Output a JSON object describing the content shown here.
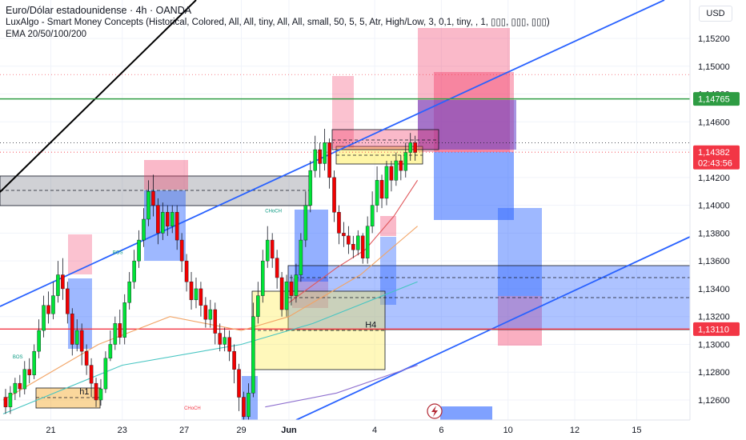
{
  "header": {
    "symbol_line": "Euro/Dólar estadounidense · 4h · OANDA",
    "indicator_line": "LuxAlgo - Smart Money Concepts (Historical, Colored, All, All, tiny, All, All, small, 50, 5, 5, Atr, High/Low, 3, 0,1, tiny, , 1, ▯▯▯, ▯▯▯, ▯▯▯)",
    "ema_line": "EMA 20/50/100/200",
    "currency": "USD"
  },
  "chart_data": {
    "type": "candlestick",
    "title": "Euro/Dólar estadounidense · 4h · OANDA",
    "y_axis": {
      "min": 1.1245,
      "max": 1.1535,
      "ticks": [
        "1,15200",
        "1,15000",
        "1,14800",
        "1,14600",
        "1,14400",
        "1,14200",
        "1,14000",
        "1,13800",
        "1,13600",
        "1,13400",
        "1,13200",
        "1,13000",
        "1,12800",
        "1,12600"
      ],
      "tick_values": [
        1.152,
        1.15,
        1.148,
        1.146,
        1.144,
        1.142,
        1.14,
        1.138,
        1.136,
        1.134,
        1.132,
        1.13,
        1.128,
        1.126
      ]
    },
    "x_axis": {
      "labels": [
        "21",
        "23",
        "27",
        "29",
        "Jun",
        "4",
        "6",
        "10",
        "12",
        "15"
      ],
      "label_bars": [
        10,
        25,
        38,
        50,
        60,
        78,
        92,
        106,
        120,
        133
      ]
    },
    "price_labels": [
      {
        "text": "1,14765",
        "value": 1.14765,
        "color": "#2e9c43"
      },
      {
        "text": "1,14382",
        "value": 1.14382,
        "color": "#f23645",
        "sub": "02:43:56"
      },
      {
        "text": "1,13110",
        "value": 1.1311,
        "color": "#f23645"
      }
    ],
    "candles": [
      [
        1.1262,
        1.1255,
        1.1268,
        1.125
      ],
      [
        1.1255,
        1.1265,
        1.127,
        1.125
      ],
      [
        1.1265,
        1.1272,
        1.1276,
        1.126
      ],
      [
        1.1272,
        1.1268,
        1.1278,
        1.1262
      ],
      [
        1.1268,
        1.1282,
        1.1288,
        1.1264
      ],
      [
        1.1282,
        1.1278,
        1.129,
        1.1272
      ],
      [
        1.1278,
        1.1295,
        1.13,
        1.1275
      ],
      [
        1.1295,
        1.131,
        1.1318,
        1.129
      ],
      [
        1.131,
        1.1328,
        1.1335,
        1.1305
      ],
      [
        1.1328,
        1.1322,
        1.1338,
        1.1315
      ],
      [
        1.1322,
        1.1335,
        1.1345,
        1.1318
      ],
      [
        1.1335,
        1.135,
        1.136,
        1.133
      ],
      [
        1.135,
        1.134,
        1.1362,
        1.1332
      ],
      [
        1.134,
        1.1322,
        1.1345,
        1.1315
      ],
      [
        1.1322,
        1.13,
        1.1326,
        1.1292
      ],
      [
        1.13,
        1.131,
        1.1318,
        1.1295
      ],
      [
        1.131,
        1.1295,
        1.1315,
        1.1285
      ],
      [
        1.1295,
        1.1285,
        1.13,
        1.1278
      ],
      [
        1.1285,
        1.1272,
        1.129,
        1.1262
      ],
      [
        1.1272,
        1.126,
        1.1276,
        1.1255
      ],
      [
        1.126,
        1.1268,
        1.1275,
        1.1256
      ],
      [
        1.1268,
        1.129,
        1.1295,
        1.1265
      ],
      [
        1.129,
        1.13,
        1.131,
        1.1288
      ],
      [
        1.13,
        1.1315,
        1.132,
        1.1296
      ],
      [
        1.1315,
        1.1305,
        1.1325,
        1.13
      ],
      [
        1.1305,
        1.133,
        1.1336,
        1.13
      ],
      [
        1.133,
        1.1345,
        1.1352,
        1.1325
      ],
      [
        1.1345,
        1.136,
        1.1368,
        1.134
      ],
      [
        1.136,
        1.1375,
        1.1382,
        1.1355
      ],
      [
        1.1375,
        1.139,
        1.1398,
        1.137
      ],
      [
        1.139,
        1.141,
        1.1418,
        1.1385
      ],
      [
        1.141,
        1.14,
        1.1422,
        1.1392
      ],
      [
        1.14,
        1.138,
        1.1405,
        1.1372
      ],
      [
        1.138,
        1.1395,
        1.1402,
        1.1375
      ],
      [
        1.1395,
        1.1385,
        1.14,
        1.1378
      ],
      [
        1.1385,
        1.1395,
        1.14,
        1.138
      ],
      [
        1.1395,
        1.1375,
        1.14,
        1.1368
      ],
      [
        1.1375,
        1.136,
        1.138,
        1.1352
      ],
      [
        1.136,
        1.1345,
        1.1365,
        1.1338
      ],
      [
        1.1345,
        1.1332,
        1.1352,
        1.1325
      ],
      [
        1.1332,
        1.134,
        1.1348,
        1.1326
      ],
      [
        1.134,
        1.1328,
        1.1345,
        1.132
      ],
      [
        1.1328,
        1.1318,
        1.1334,
        1.1312
      ],
      [
        1.1318,
        1.1325,
        1.1332,
        1.1312
      ],
      [
        1.1325,
        1.1308,
        1.133,
        1.13
      ],
      [
        1.1308,
        1.13,
        1.1315,
        1.1295
      ],
      [
        1.13,
        1.1305,
        1.1312,
        1.1295
      ],
      [
        1.1305,
        1.1295,
        1.131,
        1.1288
      ],
      [
        1.1295,
        1.1282,
        1.13,
        1.1272
      ],
      [
        1.1282,
        1.1262,
        1.1286,
        1.1252
      ],
      [
        1.1262,
        1.1248,
        1.1266,
        1.124
      ],
      [
        1.1248,
        1.1265,
        1.1272,
        1.1244
      ],
      [
        1.1265,
        1.132,
        1.133,
        1.1262
      ],
      [
        1.132,
        1.1335,
        1.1345,
        1.1315
      ],
      [
        1.1335,
        1.136,
        1.1368,
        1.133
      ],
      [
        1.136,
        1.1375,
        1.1385,
        1.1355
      ],
      [
        1.1375,
        1.1362,
        1.138,
        1.1355
      ],
      [
        1.1362,
        1.1348,
        1.1368,
        1.134
      ],
      [
        1.1348,
        1.1325,
        1.1352,
        1.132
      ],
      [
        1.1325,
        1.1345,
        1.135,
        1.132
      ],
      [
        1.1345,
        1.1335,
        1.135,
        1.1328
      ],
      [
        1.1335,
        1.135,
        1.1358,
        1.133
      ],
      [
        1.135,
        1.1375,
        1.138,
        1.1345
      ],
      [
        1.1375,
        1.14,
        1.141,
        1.137
      ],
      [
        1.14,
        1.1425,
        1.1432,
        1.1395
      ],
      [
        1.1425,
        1.144,
        1.145,
        1.142
      ],
      [
        1.144,
        1.143,
        1.1445,
        1.142
      ],
      [
        1.143,
        1.1445,
        1.1455,
        1.1425
      ],
      [
        1.1445,
        1.142,
        1.1448,
        1.1412
      ],
      [
        1.142,
        1.1395,
        1.1425,
        1.1388
      ],
      [
        1.1395,
        1.138,
        1.14,
        1.1372
      ],
      [
        1.138,
        1.1378,
        1.1388,
        1.137
      ],
      [
        1.1378,
        1.1372,
        1.1385,
        1.1365
      ],
      [
        1.1372,
        1.1368,
        1.1378,
        1.1362
      ],
      [
        1.1368,
        1.1378,
        1.1382,
        1.1364
      ],
      [
        1.1378,
        1.1362,
        1.138,
        1.1358
      ],
      [
        1.1362,
        1.1385,
        1.1392,
        1.1358
      ],
      [
        1.1385,
        1.14,
        1.141,
        1.138
      ],
      [
        1.14,
        1.1418,
        1.1428,
        1.1395
      ],
      [
        1.1418,
        1.1405,
        1.1422,
        1.1398
      ],
      [
        1.1405,
        1.1428,
        1.1432,
        1.14
      ],
      [
        1.1428,
        1.1418,
        1.1432,
        1.141
      ],
      [
        1.1418,
        1.1432,
        1.1438,
        1.1414
      ],
      [
        1.1432,
        1.1425,
        1.1436,
        1.1418
      ],
      [
        1.1425,
        1.1438,
        1.1445,
        1.142
      ],
      [
        1.1438,
        1.1445,
        1.1452,
        1.1432
      ],
      [
        1.1445,
        1.1438,
        1.145,
        1.1432
      ]
    ],
    "ema": [
      {
        "name": "EMA 20",
        "color": "#e0575b",
        "points": [
          [
            60,
            1.133
          ],
          [
            70,
            1.1355
          ],
          [
            76,
            1.1368
          ],
          [
            82,
            1.1392
          ],
          [
            87,
            1.1418
          ]
        ]
      },
      {
        "name": "EMA 50",
        "color": "#f2a465",
        "points": [
          [
            0,
            1.126
          ],
          [
            20,
            1.13
          ],
          [
            35,
            1.132
          ],
          [
            50,
            1.131
          ],
          [
            60,
            1.132
          ],
          [
            75,
            1.135
          ],
          [
            87,
            1.1385
          ]
        ]
      },
      {
        "name": "EMA 100",
        "color": "#47c5c2",
        "points": [
          [
            0,
            1.125
          ],
          [
            25,
            1.1285
          ],
          [
            50,
            1.13
          ],
          [
            65,
            1.1315
          ],
          [
            87,
            1.1345
          ]
        ]
      },
      {
        "name": "EMA 200",
        "color": "#8e6fcf",
        "points": [
          [
            55,
            1.1255
          ],
          [
            70,
            1.1265
          ],
          [
            87,
            1.1285
          ]
        ]
      }
    ],
    "annotations": [
      {
        "text": "BOS",
        "bar": 23,
        "value": 1.1365,
        "color": "#089981"
      },
      {
        "text": "BOS",
        "bar": 2,
        "value": 1.129,
        "color": "#089981"
      },
      {
        "text": "CHoCH",
        "bar": 55,
        "value": 1.1395,
        "color": "#089981"
      },
      {
        "text": "CHoCH",
        "bar": 38,
        "value": 1.1253,
        "color": "#f23645"
      }
    ],
    "box_labels": [
      {
        "text": "h1",
        "bar": 16,
        "value": 1.1264
      },
      {
        "text": "H4",
        "bar": 76,
        "value": 1.1312
      }
    ]
  }
}
